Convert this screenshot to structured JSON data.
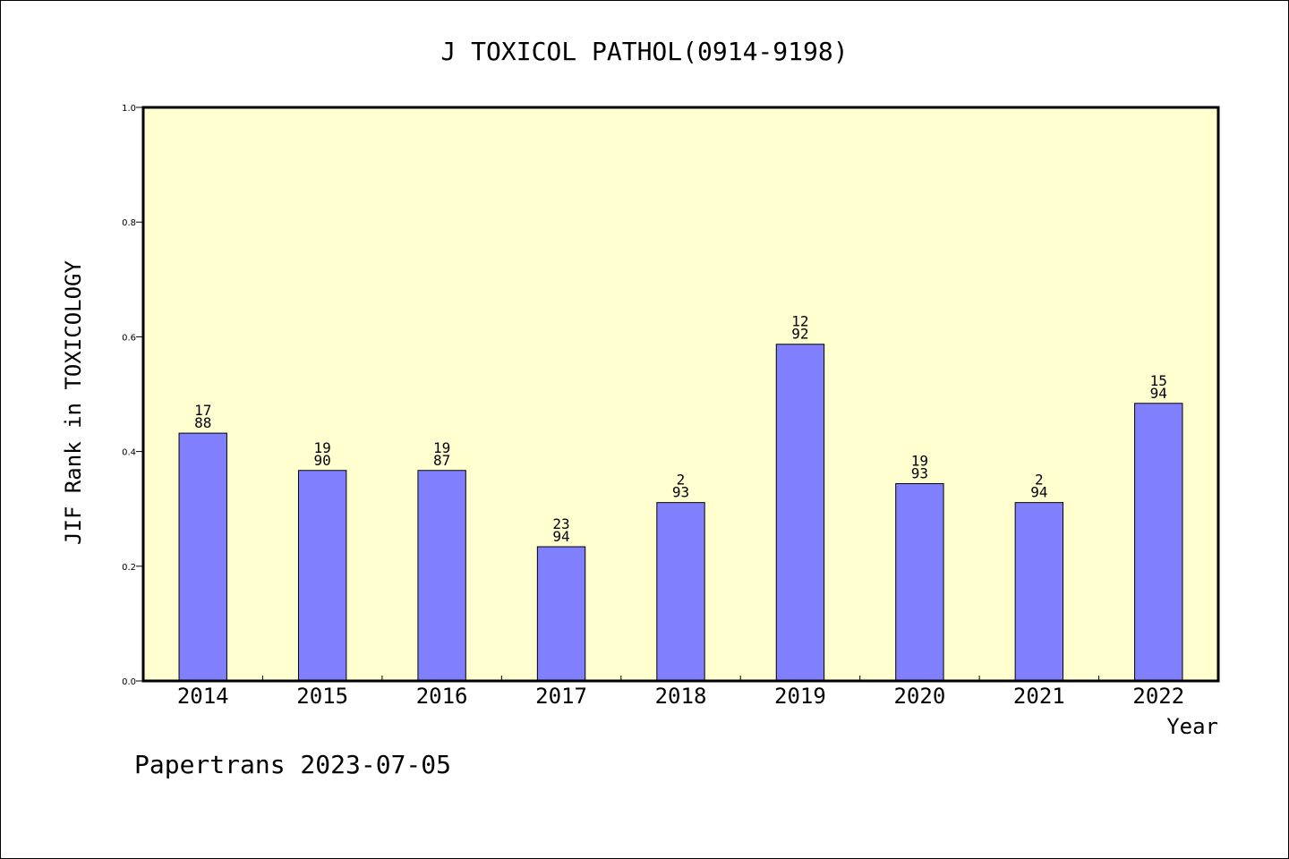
{
  "chart_data": {
    "type": "bar",
    "title": "J TOXICOL PATHOL(0914-9198)",
    "xlabel": "Year",
    "ylabel": "JIF Rank in TOXICOLOGY",
    "ylim": [
      0,
      1.0
    ],
    "yticks": [
      "0.0",
      "0.2",
      "0.4",
      "0.6",
      "0.8",
      "1.0"
    ],
    "categories": [
      "2014",
      "2015",
      "2016",
      "2017",
      "2018",
      "2019",
      "2020",
      "2021",
      "2022"
    ],
    "values": [
      0.432,
      0.367,
      0.367,
      0.234,
      0.311,
      0.587,
      0.344,
      0.311,
      0.484
    ],
    "data_labels": [
      {
        "top": "17",
        "bottom": "88"
      },
      {
        "top": "19",
        "bottom": "90"
      },
      {
        "top": "19",
        "bottom": "87"
      },
      {
        "top": "23",
        "bottom": "94"
      },
      {
        "top": "2",
        "bottom": "93"
      },
      {
        "top": "12",
        "bottom": "92"
      },
      {
        "top": "19",
        "bottom": "93"
      },
      {
        "top": "2",
        "bottom": "94"
      },
      {
        "top": "15",
        "bottom": "94"
      }
    ],
    "grid": false,
    "colors": {
      "bar": "#8080ff",
      "plot_background": "#ffffd0"
    }
  },
  "footer": "Papertrans 2023-07-05"
}
